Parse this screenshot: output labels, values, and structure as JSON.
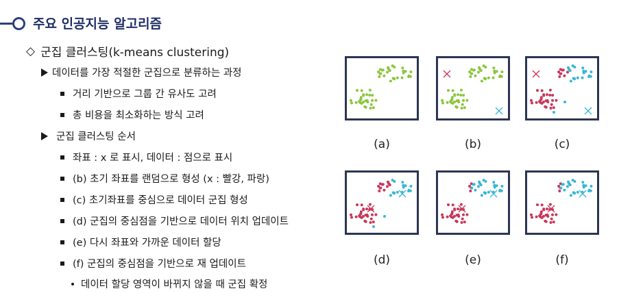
{
  "header": {
    "title": "주요 인공지능 알고리즘"
  },
  "outline": {
    "main": "군집 클러스팅(k-means clustering)",
    "intro": "데이터를 가장 적절한 군집으로 분류하는 과정",
    "intro_points": [
      "거리 기반으로 그룹 간 유사도 고려",
      "총 비용을 최소화하는 방식 고려"
    ],
    "order_title": "군집 클러스팅 순서",
    "steps": [
      "좌표 : x 로 표시, 데이터 : 점으로 표시",
      "(b) 초기 좌표를 랜덤으로 형성 (x : 빨강, 파랑)",
      "(c) 초기좌표를 중심으로 데이터 군집 형성",
      "(d) 군집의 중심점을 기반으로 데이터 위치 업데이트",
      "(e) 다시 좌표와 가까운 데이터 할당",
      "(f) 군집의 중심점을 기반으로 재 업데이트"
    ],
    "sub_step": "데이터 할당 영역이 바뀌지 않을 때 군집 확정"
  },
  "figure": {
    "colors": {
      "green": "#8cc63f",
      "red": "#c8375a",
      "blue": "#3bb6d6",
      "frame": "#2b3552"
    },
    "panels": [
      {
        "label": "(a)"
      },
      {
        "label": "(b)"
      },
      {
        "label": "(c)"
      },
      {
        "label": "(d)"
      },
      {
        "label": "(e)"
      },
      {
        "label": "(f)"
      }
    ]
  }
}
